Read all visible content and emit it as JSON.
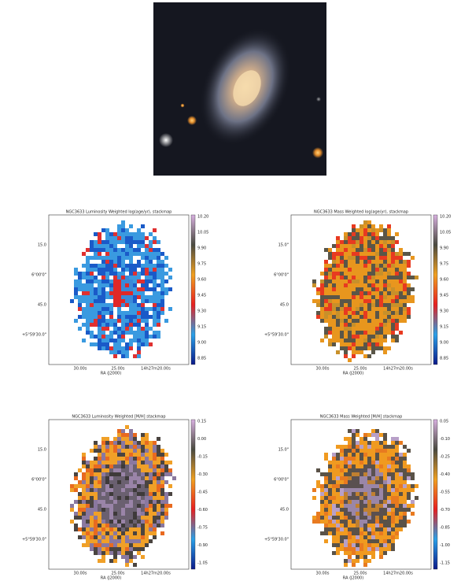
{
  "panels": [
    {
      "title": "NGC3633 Luminosity Weighted log(age/yr), stackmap",
      "colorbar_ticks": [
        "10.20",
        "10.05",
        "9.90",
        "9.75",
        "9.60",
        "9.45",
        "9.30",
        "9.15",
        "9.00",
        "8.85"
      ],
      "y_ticks": [
        "15.0",
        "6°00'0\"",
        "45.0",
        "+5°59'30.0\""
      ],
      "x_ticks": [
        "30.00s",
        "25.00s",
        "14h27m20.00s"
      ],
      "x_label": "RA (J2000)"
    },
    {
      "title": "NGC3633 Mass Weighted log(age/yr), stackmap",
      "colorbar_ticks": [
        "10.20",
        "10.05",
        "9.90",
        "9.75",
        "9.60",
        "9.45",
        "9.30",
        "9.15",
        "9.00",
        "8.85"
      ],
      "y_ticks": [
        "15.0\"",
        "6°00'0\"",
        "45.0",
        "+5°59'30.0\""
      ],
      "x_ticks": [
        "30.00s",
        "25.00s",
        "14h27m20.00s"
      ],
      "x_label": "RA (J2000)"
    },
    {
      "title": "NGC3633 Luminosity Weighted [M/H] stackmap",
      "colorbar_ticks": [
        "0.15",
        "0.00",
        "-0.15",
        "-0.30",
        "-0.45",
        "-0.60",
        "-0.75",
        "-0.90",
        "-1.05"
      ],
      "y_ticks": [
        "15.0",
        "6°00'0\"",
        "45.0",
        "+5°59'30.0\""
      ],
      "x_ticks": [
        "30.00s",
        "25.00s",
        "14h27m20.00s"
      ],
      "x_label": "RA (J2000)"
    },
    {
      "title": "NGC3633 Mass Weighted [M/H] stackmap",
      "colorbar_ticks": [
        "0.05",
        "-0.10",
        "-0.25",
        "-0.40",
        "-0.55",
        "-0.70",
        "-0.85",
        "-1.00",
        "-1.15"
      ],
      "y_ticks": [
        "15.0\"",
        "6°00'0\"",
        "45.0",
        "+5°59'30.0\""
      ],
      "x_ticks": [
        "30.00s",
        "25.00s",
        "14h27m20.00s"
      ],
      "x_label": "RA (J2000)"
    }
  ]
}
